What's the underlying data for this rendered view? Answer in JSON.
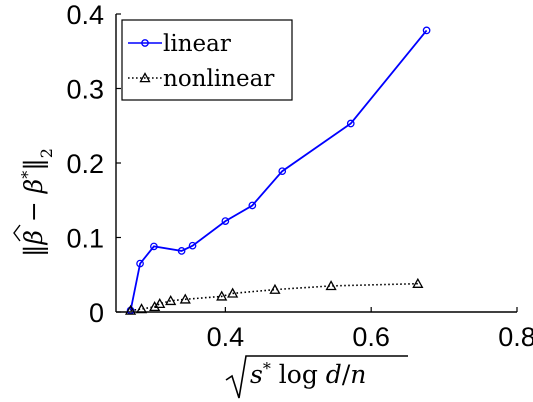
{
  "chart_data": {
    "type": "line",
    "title": "",
    "xlabel": "√(s* log d / n)",
    "ylabel": "‖β̂ − β*‖₂",
    "xlim": [
      0.25,
      0.8
    ],
    "ylim": [
      0,
      0.4
    ],
    "x_ticks": [
      0.4,
      0.6,
      0.8
    ],
    "y_ticks": [
      0,
      0.1,
      0.2,
      0.3,
      0.4
    ],
    "x_tick_labels": [
      "0.4",
      "0.6",
      "0.8"
    ],
    "y_tick_labels": [
      "0",
      "0.1",
      "0.2",
      "0.3",
      "0.4"
    ],
    "grid": false,
    "legend_position": "top-left",
    "series": [
      {
        "name": "linear",
        "color": "#0000ff",
        "line_style": "solid",
        "marker": "circle",
        "x": [
          0.27,
          0.283,
          0.302,
          0.34,
          0.355,
          0.4,
          0.437,
          0.478,
          0.572,
          0.676
        ],
        "y": [
          0.002,
          0.065,
          0.088,
          0.082,
          0.089,
          0.122,
          0.143,
          0.189,
          0.253,
          0.378
        ]
      },
      {
        "name": "nonlinear",
        "color": "#000000",
        "line_style": "dotted",
        "marker": "triangle",
        "x": [
          0.27,
          0.285,
          0.303,
          0.31,
          0.325,
          0.345,
          0.395,
          0.41,
          0.468,
          0.545,
          0.664
        ],
        "y": [
          0.002,
          0.004,
          0.007,
          0.011,
          0.015,
          0.017,
          0.021,
          0.025,
          0.03,
          0.035,
          0.038
        ]
      }
    ]
  }
}
